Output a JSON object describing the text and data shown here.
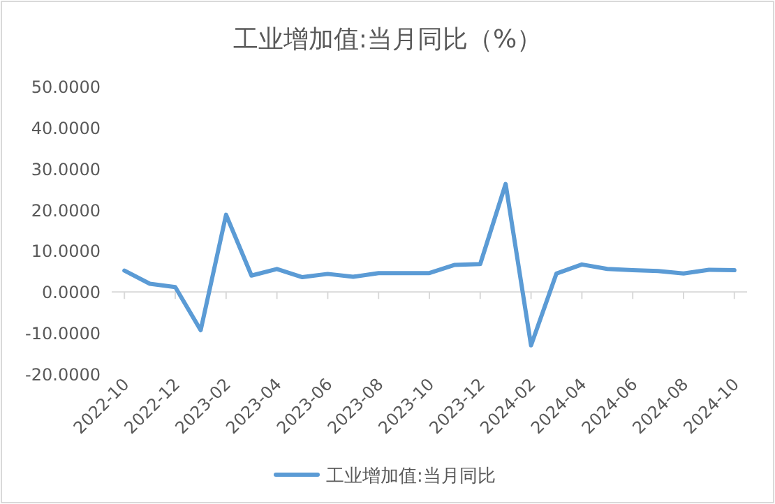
{
  "chart_data": {
    "type": "line",
    "title": "工业增加值:当月同比（%）",
    "categories": [
      "2022-10",
      null,
      "2022-12",
      null,
      "2023-02",
      null,
      "2023-04",
      null,
      "2023-06",
      null,
      "2023-08",
      null,
      "2023-10",
      null,
      "2023-12",
      null,
      "2024-02",
      null,
      "2024-04",
      null,
      "2024-06",
      null,
      "2024-08",
      null,
      "2024-10"
    ],
    "series": [
      {
        "name": "工业增加值:当月同比",
        "color": "#5b9bd5",
        "values": [
          5.2,
          2.0,
          1.2,
          -9.3,
          18.8,
          4.0,
          5.6,
          3.6,
          4.4,
          3.7,
          4.6,
          4.6,
          4.6,
          6.6,
          6.8,
          26.3,
          -13.0,
          4.5,
          6.7,
          5.6,
          5.3,
          5.1,
          4.5,
          5.4,
          5.3
        ]
      }
    ],
    "ylim": [
      -20,
      50
    ],
    "yticks": [
      {
        "value": -20,
        "label": "-20.0000"
      },
      {
        "value": -10,
        "label": "-10.0000"
      },
      {
        "value": 0,
        "label": "0.0000"
      },
      {
        "value": 10,
        "label": "10.0000"
      },
      {
        "value": 20,
        "label": "20.0000"
      },
      {
        "value": 30,
        "label": "30.0000"
      },
      {
        "value": 40,
        "label": "40.0000"
      },
      {
        "value": 50,
        "label": "50.0000"
      }
    ],
    "legend": "bottom",
    "marker": "none",
    "line_style": "solid"
  }
}
